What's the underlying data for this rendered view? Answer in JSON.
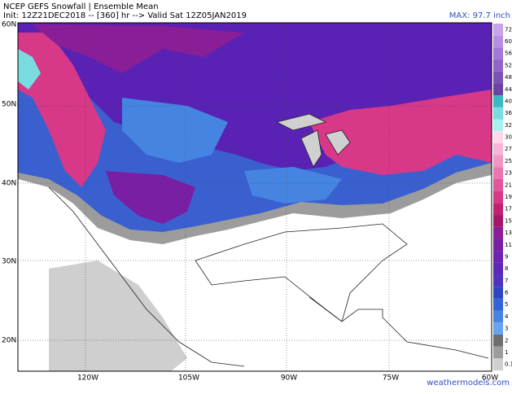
{
  "header": {
    "title": "NCEP GEFS Snowfall | Ensemble Mean",
    "subtitle": "Init: 12Z21DEC2018 -- [360] hr --> Valid Sat 12Z05JAN2019",
    "max": "MAX: 97.7 inch"
  },
  "lat_labels": [
    "60N",
    "50N",
    "40N",
    "30N",
    "20N"
  ],
  "lon_labels": [
    "120W",
    "105W",
    "90W",
    "75W",
    "60W"
  ],
  "colorbar": {
    "levels": [
      72,
      60,
      56,
      52,
      48,
      44,
      40,
      36,
      32,
      30,
      27,
      25,
      23,
      21,
      19,
      17,
      15,
      13,
      11,
      9,
      8,
      7,
      6,
      5,
      4,
      3,
      2,
      1,
      0.1
    ],
    "colors": [
      "#c9a3ea",
      "#b98de2",
      "#a577d6",
      "#9264c8",
      "#7c52b4",
      "#6a44a0",
      "#3cb8c4",
      "#7adbe0",
      "#a8f0f0",
      "#ffd6ea",
      "#f8b4d4",
      "#f296c4",
      "#ea76b2",
      "#e2569e",
      "#d83888",
      "#c22072",
      "#a4186a",
      "#8a1e96",
      "#7a1ea4",
      "#6c22b0",
      "#5e26b8",
      "#5230c0",
      "#2e46c4",
      "#3264d4",
      "#4684e2",
      "#66a4f0",
      "#6e6e6e",
      "#9c9c9c",
      "#cfcfcf"
    ]
  },
  "watermark": "weathermodels.com"
}
